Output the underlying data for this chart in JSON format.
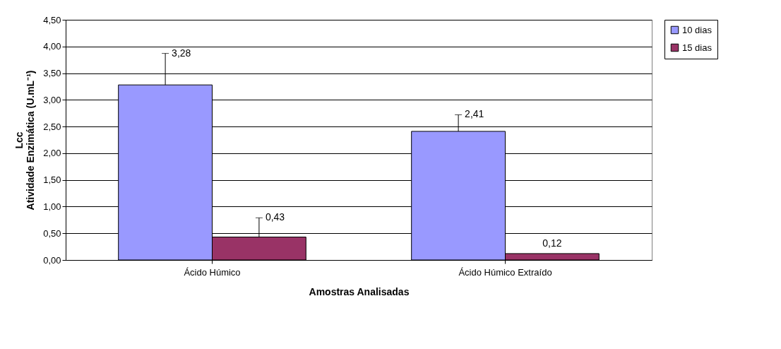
{
  "chart_data": {
    "type": "bar",
    "xlabel": "Amostras Analisadas",
    "ylabel": [
      "Lcc",
      "Atividade Enzimática (U.mL⁻¹)"
    ],
    "categories": [
      "Ácido Húmico",
      "Ácido Húmico Extraído"
    ],
    "series": [
      {
        "name": "10 dias",
        "color": "#9999ff",
        "values": [
          3.28,
          2.41
        ],
        "errors": [
          [
            3.28,
            3.87
          ],
          [
            2.41,
            2.72
          ]
        ],
        "value_labels": [
          "3,28",
          "2,41"
        ]
      },
      {
        "name": "15 dias",
        "color": "#993366",
        "values": [
          0.43,
          0.12
        ],
        "errors": [
          [
            0.43,
            0.79
          ],
          null
        ],
        "value_labels": [
          "0,43",
          "0,12"
        ]
      }
    ],
    "ylim": [
      0,
      4.5
    ],
    "yticks": [
      {
        "value": 0,
        "label": "0,00"
      },
      {
        "value": 0.5,
        "label": "0,50"
      },
      {
        "value": 1,
        "label": "1,00"
      },
      {
        "value": 1.5,
        "label": "1,50"
      },
      {
        "value": 2,
        "label": "2,00"
      },
      {
        "value": 2.5,
        "label": "2,50"
      },
      {
        "value": 3,
        "label": "3,00"
      },
      {
        "value": 3.5,
        "label": "3,50"
      },
      {
        "value": 4,
        "label": "4,00"
      },
      {
        "value": 4.5,
        "label": "4,50"
      }
    ],
    "grid": "y",
    "legend": "right"
  }
}
